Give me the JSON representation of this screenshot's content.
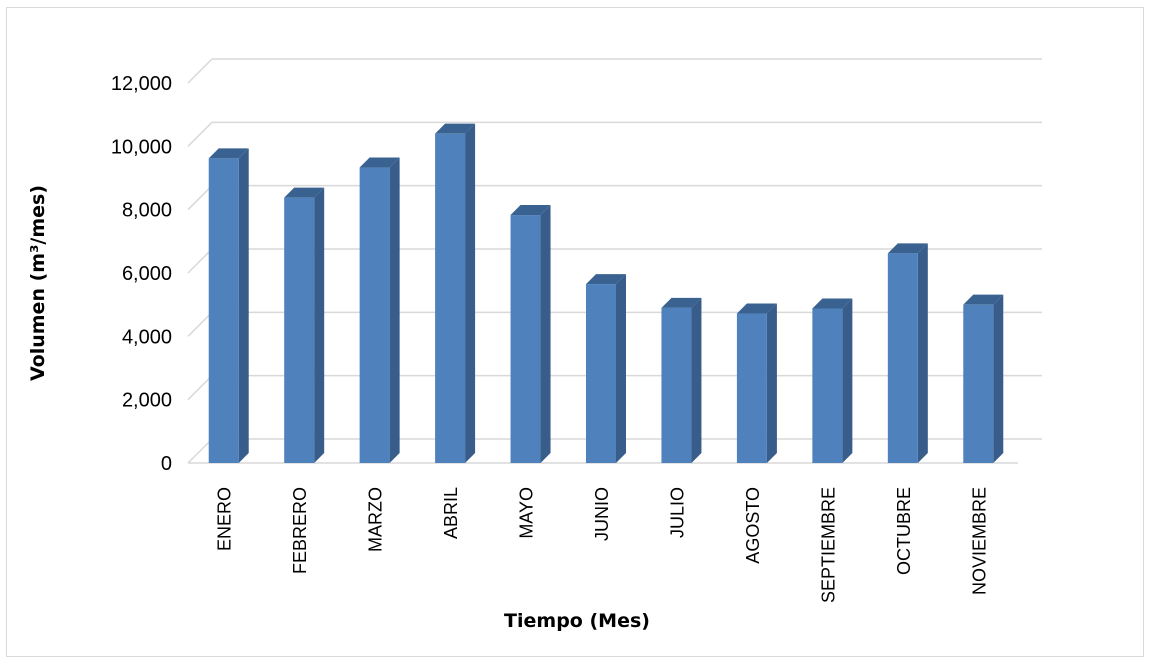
{
  "chart_data": {
    "type": "bar",
    "style": "3d-column",
    "categories": [
      "ENERO",
      "FEBRERO",
      "MARZO",
      "ABRIL",
      "MAYO",
      "JUNIO",
      "JULIO",
      "AGOSTO",
      "SEPTIEMBRE",
      "OCTUBRE",
      "NOVIEMBRE"
    ],
    "values": [
      9620,
      8380,
      9330,
      10400,
      7830,
      5650,
      4900,
      4720,
      4880,
      6620,
      5000
    ],
    "xlabel": "Tiempo (Mes)",
    "ylabel": "Volumen (m³/mes)",
    "ylim": [
      0,
      12000
    ],
    "yticks": [
      "0",
      "2,000",
      "4,000",
      "6,000",
      "8,000",
      "10,000",
      "12,000"
    ],
    "grid": true,
    "legend": "none",
    "colors": {
      "bar_front": "#4f81bd",
      "bar_side": "#385d8a",
      "bar_top": "#3a6290",
      "grid": "#d9d9d9"
    }
  }
}
